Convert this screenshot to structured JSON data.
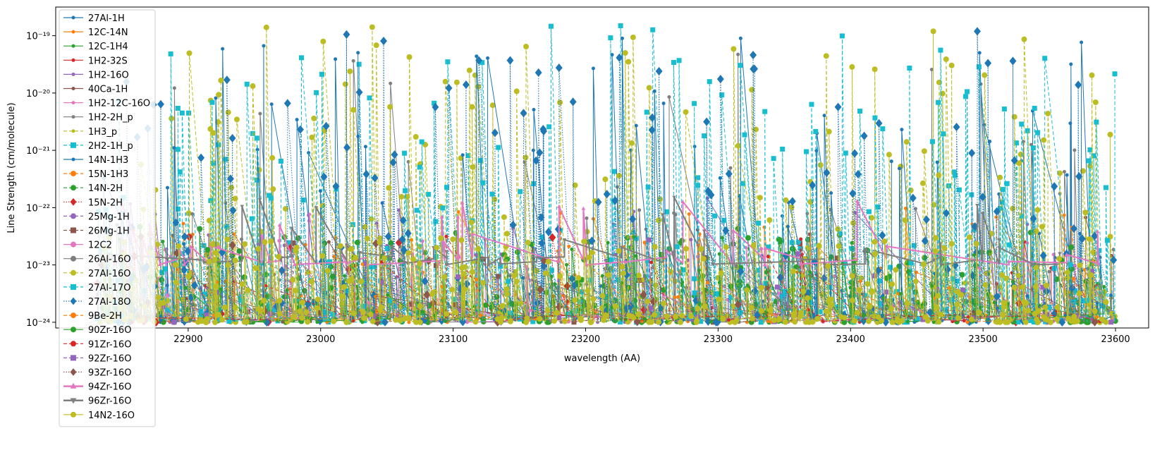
{
  "chart_data": {
    "type": "line",
    "title": "",
    "xlabel": "wavelength (AA)",
    "ylabel": "Line Strength (cm/molecule)",
    "xlim": [
      22800,
      23625
    ],
    "ylim_log10": [
      -24.1,
      -18.5
    ],
    "yscale": "log",
    "x_ticks": [
      22900,
      23000,
      23100,
      23200,
      23300,
      23400,
      23500,
      23600
    ],
    "y_ticks": [
      {
        "exp": -24,
        "label": "10⁻²⁴"
      },
      {
        "exp": -23,
        "label": "10⁻²³"
      },
      {
        "exp": -22,
        "label": "10⁻²²"
      },
      {
        "exp": -21,
        "label": "10⁻²¹"
      },
      {
        "exp": -20,
        "label": "10⁻²⁰"
      },
      {
        "exp": -19,
        "label": "10⁻¹⁹"
      }
    ],
    "grid": false,
    "legend_position": "upper-left",
    "series": [
      {
        "name": "27Al-1H",
        "color": "#1f77b4",
        "marker": "circle",
        "linestyle": "solid",
        "range_log10": [
          -24.0,
          -19.0
        ],
        "density": 20
      },
      {
        "name": "12C-14N",
        "color": "#ff7f0e",
        "marker": "circle",
        "linestyle": "solid",
        "range_log10": [
          -24.0,
          -22.0
        ],
        "density": 60
      },
      {
        "name": "12C-1H4",
        "color": "#2ca02c",
        "marker": "circle",
        "linestyle": "solid",
        "range_log10": [
          -24.0,
          -22.3
        ],
        "density": 120
      },
      {
        "name": "1H2-32S",
        "color": "#d62728",
        "marker": "circle",
        "linestyle": "solid",
        "range_log10": [
          -24.0,
          -22.3
        ],
        "density": 30
      },
      {
        "name": "1H2-16O",
        "color": "#9467bd",
        "marker": "circle",
        "linestyle": "solid",
        "range_log10": [
          -24.0,
          -21.5
        ],
        "density": 60
      },
      {
        "name": "40Ca-1H",
        "color": "#8c564b",
        "marker": "circle",
        "linestyle": "solid",
        "range_log10": [
          -24.0,
          -22.0
        ],
        "density": 20
      },
      {
        "name": "1H2-12C-16O",
        "color": "#e377c2",
        "marker": "circle",
        "linestyle": "solid",
        "range_log10": [
          -24.0,
          -22.0
        ],
        "density": 60
      },
      {
        "name": "1H2-2H_p",
        "color": "#7f7f7f",
        "marker": "circle",
        "linestyle": "solid",
        "range_log10": [
          -24.0,
          -19.0
        ],
        "density": 60
      },
      {
        "name": "1H3_p",
        "color": "#bcbd22",
        "marker": "circle",
        "linestyle": "dashed",
        "range_log10": [
          -24.0,
          -18.8
        ],
        "density": 160
      },
      {
        "name": "2H2-1H_p",
        "color": "#17becf",
        "marker": "square",
        "linestyle": "dashed",
        "range_log10": [
          -24.0,
          -18.8
        ],
        "density": 160
      },
      {
        "name": "14N-1H3",
        "color": "#1f77b4",
        "marker": "circle",
        "linestyle": "solid",
        "range_log10": [
          -24.0,
          -19.0
        ],
        "density": 100
      },
      {
        "name": "15N-1H3",
        "color": "#ff7f0e",
        "marker": "circle",
        "linestyle": "dashed",
        "range_log10": [
          -24.0,
          -22.0
        ],
        "density": 40
      },
      {
        "name": "14N-2H",
        "color": "#2ca02c",
        "marker": "circle",
        "linestyle": "dashed",
        "range_log10": [
          -24.0,
          -22.5
        ],
        "density": 120
      },
      {
        "name": "15N-2H",
        "color": "#d62728",
        "marker": "diamond",
        "linestyle": "dotted",
        "range_log10": [
          -24.0,
          -22.3
        ],
        "density": 20
      },
      {
        "name": "25Mg-1H",
        "color": "#9467bd",
        "marker": "circle",
        "linestyle": "dashed",
        "range_log10": [
          -24.0,
          -22.5
        ],
        "density": 30
      },
      {
        "name": "26Mg-1H",
        "color": "#8c564b",
        "marker": "square",
        "linestyle": "dashed",
        "range_log10": [
          -24.0,
          -22.5
        ],
        "density": 20
      },
      {
        "name": "12C2",
        "color": "#e377c2",
        "marker": "circle",
        "linestyle": "solid",
        "range_log10": [
          -24.0,
          -22.5
        ],
        "density": 40
      },
      {
        "name": "26Al-16O",
        "color": "#7f7f7f",
        "marker": "circle",
        "linestyle": "solid",
        "range_log10": [
          -24.0,
          -22.0
        ],
        "density": 40
      },
      {
        "name": "27Al-16O",
        "color": "#bcbd22",
        "marker": "circle",
        "linestyle": "dashed",
        "range_log10": [
          -24.0,
          -19.0
        ],
        "density": 140
      },
      {
        "name": "27Al-17O",
        "color": "#17becf",
        "marker": "square",
        "linestyle": "dashed",
        "range_log10": [
          -24.0,
          -19.0
        ],
        "density": 140
      },
      {
        "name": "27Al-18O",
        "color": "#1f77b4",
        "marker": "diamond",
        "linestyle": "dotted",
        "range_log10": [
          -24.0,
          -18.8
        ],
        "density": 200
      },
      {
        "name": "9Be-2H",
        "color": "#ff7f0e",
        "marker": "circle",
        "linestyle": "dashed",
        "range_log10": [
          -24.0,
          -22.5
        ],
        "density": 30
      },
      {
        "name": "90Zr-16O",
        "color": "#2ca02c",
        "marker": "circle",
        "linestyle": "solid",
        "range_log10": [
          -24.0,
          -22.5
        ],
        "density": 100
      },
      {
        "name": "91Zr-16O",
        "color": "#d62728",
        "marker": "circle",
        "linestyle": "dashed",
        "range_log10": [
          -24.0,
          -22.5
        ],
        "density": 20
      },
      {
        "name": "92Zr-16O",
        "color": "#9467bd",
        "marker": "square",
        "linestyle": "dashed",
        "range_log10": [
          -24.0,
          -22.5
        ],
        "density": 30
      },
      {
        "name": "93Zr-16O",
        "color": "#8c564b",
        "marker": "diamond",
        "linestyle": "dotted",
        "range_log10": [
          -24.0,
          -22.5
        ],
        "density": 20
      },
      {
        "name": "94Zr-16O",
        "color": "#e377c2",
        "marker": "triangle-up",
        "linestyle": "solid",
        "range_log10": [
          -23.0,
          -21.8
        ],
        "density": 40
      },
      {
        "name": "96Zr-16O",
        "color": "#7f7f7f",
        "marker": "triangle-down",
        "linestyle": "solid",
        "range_log10": [
          -23.0,
          -21.8
        ],
        "density": 40
      },
      {
        "name": "14N2-16O",
        "color": "#bcbd22",
        "marker": "circle",
        "linestyle": "solid",
        "range_log10": [
          -24.0,
          -22.5
        ],
        "density": 300
      }
    ]
  }
}
